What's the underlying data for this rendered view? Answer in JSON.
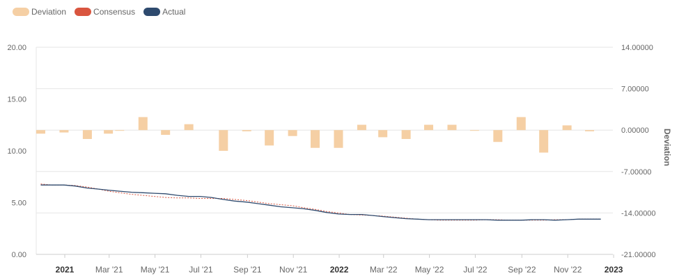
{
  "chart_data": {
    "type": "bar+line",
    "legend": [
      {
        "name": "Deviation",
        "color": "#f5cfa4"
      },
      {
        "name": "Consensus",
        "color": "#d9553f"
      },
      {
        "name": "Actual",
        "color": "#2e4a6e"
      }
    ],
    "left_axis": {
      "ticks": [
        "20.00",
        "15.00",
        "10.00",
        "5.00",
        "0.00"
      ],
      "tick_values": [
        20,
        15,
        10,
        5,
        0
      ],
      "ylim": [
        0,
        20
      ]
    },
    "right_axis": {
      "label": "Deviation",
      "ticks": [
        "14.00000",
        "7.00000",
        "0.00000",
        "-7.00000",
        "-14.00000",
        "-21.00000"
      ],
      "tick_values": [
        14,
        7,
        0,
        -7,
        -14,
        -21
      ],
      "ylim": [
        -21,
        14
      ]
    },
    "x_axis": {
      "ticks": [
        {
          "label": "2021",
          "bold": true,
          "date": "2021-01-01"
        },
        {
          "label": "Mar '21",
          "bold": false,
          "date": "2021-03-01"
        },
        {
          "label": "May '21",
          "bold": false,
          "date": "2021-05-01"
        },
        {
          "label": "Jul '21",
          "bold": false,
          "date": "2021-07-01"
        },
        {
          "label": "Sep '21",
          "bold": false,
          "date": "2021-09-01"
        },
        {
          "label": "Nov '21",
          "bold": false,
          "date": "2021-11-01"
        },
        {
          "label": "2022",
          "bold": true,
          "date": "2022-01-01"
        },
        {
          "label": "Mar '22",
          "bold": false,
          "date": "2022-03-01"
        },
        {
          "label": "May '22",
          "bold": false,
          "date": "2022-05-01"
        },
        {
          "label": "Jul '22",
          "bold": false,
          "date": "2022-07-01"
        },
        {
          "label": "Sep '22",
          "bold": false,
          "date": "2022-09-01"
        },
        {
          "label": "Nov '22",
          "bold": false,
          "date": "2022-11-01"
        },
        {
          "label": "2023",
          "bold": true,
          "date": "2023-01-01"
        }
      ],
      "range": [
        "2020-11-24",
        "2022-12-31"
      ]
    },
    "series": [
      {
        "name": "Deviation",
        "axis": "right",
        "kind": "bar",
        "color": "#f5cfa4",
        "x": [
          "2020-11-30",
          "2020-12-15",
          "2020-12-31",
          "2021-01-15",
          "2021-01-31",
          "2021-02-15",
          "2021-02-28",
          "2021-03-15",
          "2021-03-31",
          "2021-04-15",
          "2021-04-30",
          "2021-05-15",
          "2021-05-31",
          "2021-06-15",
          "2021-06-30",
          "2021-07-15",
          "2021-07-31",
          "2021-08-15",
          "2021-08-31",
          "2021-09-15",
          "2021-09-30",
          "2021-10-15",
          "2021-10-31",
          "2021-11-15",
          "2021-11-30",
          "2021-12-15",
          "2021-12-31",
          "2022-01-15",
          "2022-01-31",
          "2022-02-15",
          "2022-02-28",
          "2022-03-15",
          "2022-03-31",
          "2022-04-15",
          "2022-04-30",
          "2022-05-15",
          "2022-05-31",
          "2022-06-15",
          "2022-06-30",
          "2022-07-15",
          "2022-07-31",
          "2022-08-15",
          "2022-08-31",
          "2022-09-15",
          "2022-09-30",
          "2022-10-15",
          "2022-10-31",
          "2022-11-15",
          "2022-11-30",
          "2022-12-15"
        ],
        "values": [
          -0.6,
          0,
          -0.4,
          0,
          -1.5,
          0,
          -0.6,
          -0.1,
          0,
          2.2,
          0,
          -0.8,
          0,
          1.0,
          0,
          0,
          -3.5,
          0,
          -0.2,
          0,
          -2.6,
          0,
          -1.0,
          0,
          -3.0,
          0,
          -3.0,
          0,
          0.9,
          0,
          -1.2,
          0,
          -1.5,
          0,
          0.9,
          0,
          0.9,
          0,
          -0.1,
          0,
          -2.0,
          0,
          2.2,
          0,
          -3.8,
          0,
          0.8,
          0,
          -0.2,
          0
        ]
      },
      {
        "name": "Consensus",
        "axis": "left",
        "kind": "line-dashed",
        "color": "#d9553f",
        "x": [
          "2020-11-30",
          "2020-12-15",
          "2020-12-31",
          "2021-01-15",
          "2021-01-31",
          "2021-02-15",
          "2021-02-28",
          "2021-03-15",
          "2021-03-31",
          "2021-04-15",
          "2021-04-30",
          "2021-05-15",
          "2021-05-31",
          "2021-06-15",
          "2021-06-30",
          "2021-07-15",
          "2021-07-31",
          "2021-08-15",
          "2021-08-31",
          "2021-09-15",
          "2021-09-30",
          "2021-10-15",
          "2021-10-31",
          "2021-11-15",
          "2021-11-30",
          "2021-12-15",
          "2021-12-31",
          "2022-01-15",
          "2022-01-31",
          "2022-02-15",
          "2022-02-28",
          "2022-03-15",
          "2022-03-31",
          "2022-04-15",
          "2022-04-30",
          "2022-05-15",
          "2022-05-31",
          "2022-06-15",
          "2022-06-30",
          "2022-07-15",
          "2022-07-31",
          "2022-08-15",
          "2022-08-31",
          "2022-09-15",
          "2022-09-30",
          "2022-10-15",
          "2022-10-31",
          "2022-11-15",
          "2022-11-30",
          "2022-12-15"
        ],
        "values": [
          6.8,
          6.7,
          6.7,
          6.65,
          6.5,
          6.3,
          6.1,
          5.95,
          5.8,
          5.7,
          5.6,
          5.5,
          5.45,
          5.45,
          5.4,
          5.4,
          5.4,
          5.3,
          5.2,
          5.05,
          4.9,
          4.8,
          4.7,
          4.5,
          4.35,
          4.15,
          4.0,
          3.85,
          3.8,
          3.75,
          3.7,
          3.6,
          3.5,
          3.4,
          3.35,
          3.3,
          3.3,
          3.3,
          3.3,
          3.35,
          3.35,
          3.3,
          3.3,
          3.3,
          3.3,
          3.35,
          3.35,
          3.4,
          3.4,
          3.4
        ]
      },
      {
        "name": "Actual",
        "axis": "left",
        "kind": "line",
        "color": "#2e4a6e",
        "x": [
          "2020-11-30",
          "2020-12-15",
          "2020-12-31",
          "2021-01-15",
          "2021-01-31",
          "2021-02-15",
          "2021-02-28",
          "2021-03-15",
          "2021-03-31",
          "2021-04-15",
          "2021-04-30",
          "2021-05-15",
          "2021-05-31",
          "2021-06-15",
          "2021-06-30",
          "2021-07-15",
          "2021-07-31",
          "2021-08-15",
          "2021-08-31",
          "2021-09-15",
          "2021-09-30",
          "2021-10-15",
          "2021-10-31",
          "2021-11-15",
          "2021-11-30",
          "2021-12-15",
          "2021-12-31",
          "2022-01-15",
          "2022-01-31",
          "2022-02-15",
          "2022-02-28",
          "2022-03-15",
          "2022-03-31",
          "2022-04-15",
          "2022-04-30",
          "2022-05-15",
          "2022-05-31",
          "2022-06-15",
          "2022-06-30",
          "2022-07-15",
          "2022-07-31",
          "2022-08-15",
          "2022-08-31",
          "2022-09-15",
          "2022-09-30",
          "2022-10-15",
          "2022-10-31",
          "2022-11-15",
          "2022-11-30",
          "2022-12-15"
        ],
        "values": [
          6.7,
          6.7,
          6.7,
          6.6,
          6.4,
          6.3,
          6.2,
          6.1,
          6.0,
          5.95,
          5.9,
          5.85,
          5.7,
          5.6,
          5.6,
          5.5,
          5.3,
          5.15,
          5.05,
          4.9,
          4.75,
          4.6,
          4.5,
          4.4,
          4.25,
          4.05,
          3.9,
          3.85,
          3.85,
          3.75,
          3.65,
          3.55,
          3.45,
          3.4,
          3.35,
          3.35,
          3.35,
          3.35,
          3.35,
          3.35,
          3.3,
          3.3,
          3.3,
          3.35,
          3.35,
          3.3,
          3.35,
          3.4,
          3.4,
          3.4
        ]
      }
    ],
    "grid": true
  }
}
